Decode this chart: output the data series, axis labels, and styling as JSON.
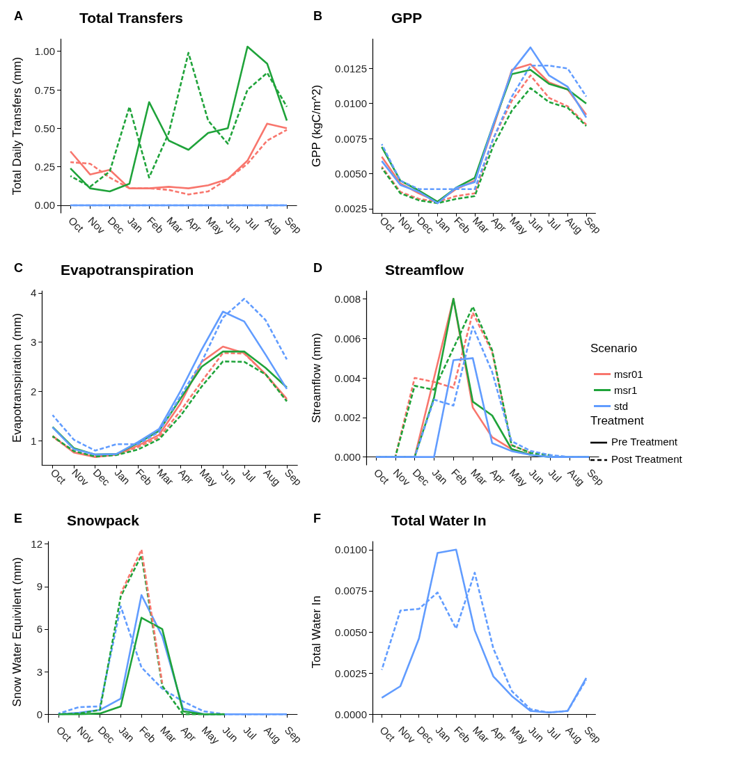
{
  "chart_data": [
    {
      "type": "line",
      "title": "Total Transfers",
      "annotations": [
        "A"
      ],
      "ylabel": "Total Daily Transfers (mm)",
      "categories": [
        "Oct",
        "Nov",
        "Dec",
        "Jan",
        "Feb",
        "Mar",
        "Apr",
        "May",
        "Jun",
        "Jul",
        "Aug",
        "Sep"
      ],
      "ylim": [
        -0.05,
        1.08
      ],
      "yticks": [
        {
          "value": 0,
          "label": "0.00"
        },
        {
          "value": 0.25,
          "label": "0.25"
        },
        {
          "value": 0.5,
          "label": "0.50"
        },
        {
          "value": 0.75,
          "label": "0.75"
        },
        {
          "value": 1,
          "label": "1.00"
        }
      ],
      "series": [
        {
          "color": "#f8766d",
          "line_style": "solid",
          "values": [
            0.35,
            0.2,
            0.23,
            0.11,
            0.11,
            0.12,
            0.11,
            0.13,
            0.17,
            0.29,
            0.53,
            0.5
          ]
        },
        {
          "color": "#f8766d",
          "line_style": "dashed",
          "values": [
            0.28,
            0.27,
            0.18,
            0.11,
            0.11,
            0.1,
            0.07,
            0.09,
            0.17,
            0.27,
            0.42,
            0.49
          ]
        },
        {
          "color": "#1fa33a",
          "line_style": "solid",
          "values": [
            0.24,
            0.11,
            0.09,
            0.14,
            0.67,
            0.42,
            0.36,
            0.47,
            0.5,
            1.03,
            0.92,
            0.55
          ]
        },
        {
          "color": "#1fa33a",
          "line_style": "dashed",
          "values": [
            0.19,
            0.12,
            0.22,
            0.64,
            0.18,
            0.47,
            0.99,
            0.55,
            0.4,
            0.75,
            0.86,
            0.64
          ]
        },
        {
          "color": "#619cff",
          "line_style": "dashed",
          "values": [
            0,
            0,
            0,
            0,
            0,
            0,
            0,
            0,
            0,
            0,
            0,
            0
          ]
        },
        {
          "color": "#619cff",
          "line_style": "solid",
          "values": [
            0,
            0,
            0,
            0,
            0,
            0,
            0,
            0,
            0,
            0,
            0,
            0
          ]
        }
      ]
    },
    {
      "type": "line",
      "title": "GPP",
      "annotations": [
        "B"
      ],
      "ylabel": "GPP (kgC/m^2)",
      "categories": [
        "Oct",
        "Nov",
        "Dec",
        "Jan",
        "Feb",
        "Mar",
        "Apr",
        "May",
        "Jun",
        "Jul",
        "Aug",
        "Sep"
      ],
      "ylim": [
        0.0022,
        0.0146
      ],
      "yticks": [
        {
          "value": 0.0025,
          "label": "0.0025"
        },
        {
          "value": 0.005,
          "label": "0.0050"
        },
        {
          "value": 0.0075,
          "label": "0.0075"
        },
        {
          "value": 0.01,
          "label": "0.0100"
        },
        {
          "value": 0.0125,
          "label": "0.0125"
        }
      ],
      "series": [
        {
          "color": "#f8766d",
          "line_style": "solid",
          "values": [
            0.0062,
            0.0043,
            0.0036,
            0.003,
            0.0039,
            0.0045,
            0.0083,
            0.0124,
            0.0128,
            0.0115,
            0.011,
            0.0092
          ]
        },
        {
          "color": "#f8766d",
          "line_style": "dashed",
          "values": [
            0.0055,
            0.0037,
            0.0032,
            0.003,
            0.0034,
            0.0036,
            0.0075,
            0.0102,
            0.012,
            0.0104,
            0.0098,
            0.0085
          ]
        },
        {
          "color": "#1fa33a",
          "line_style": "solid",
          "values": [
            0.0069,
            0.0045,
            0.0038,
            0.003,
            0.004,
            0.0047,
            0.0085,
            0.0121,
            0.0124,
            0.0114,
            0.011,
            0.01
          ]
        },
        {
          "color": "#1fa33a",
          "line_style": "dashed",
          "values": [
            0.0054,
            0.0036,
            0.0031,
            0.0029,
            0.0032,
            0.0034,
            0.007,
            0.0095,
            0.0111,
            0.0101,
            0.0097,
            0.0084
          ]
        },
        {
          "color": "#619cff",
          "line_style": "dashed",
          "values": [
            0.0071,
            0.0045,
            0.0039,
            0.0039,
            0.0039,
            0.0039,
            0.0075,
            0.0105,
            0.0127,
            0.0127,
            0.0125,
            0.0105
          ]
        },
        {
          "color": "#619cff",
          "line_style": "solid",
          "values": [
            0.0059,
            0.0042,
            0.0037,
            0.0029,
            0.004,
            0.0044,
            0.0085,
            0.0123,
            0.014,
            0.012,
            0.0112,
            0.009
          ]
        }
      ]
    },
    {
      "type": "line",
      "title": "Evapotranspiration",
      "annotations": [
        "C"
      ],
      "ylabel": "Evapotranspiration (mm)",
      "categories": [
        "Oct",
        "Nov",
        "Dec",
        "Jan",
        "Feb",
        "Mar",
        "Apr",
        "May",
        "Jun",
        "Jul",
        "Aug",
        "Sep"
      ],
      "ylim": [
        0.51,
        4.04
      ],
      "yticks": [
        1,
        2,
        3,
        4
      ],
      "series": [
        {
          "color": "#f8766d",
          "line_style": "solid",
          "values": [
            1.1,
            0.76,
            0.67,
            0.72,
            0.9,
            1.12,
            1.75,
            2.6,
            2.91,
            2.78,
            2.35,
            1.85
          ]
        },
        {
          "color": "#f8766d",
          "line_style": "dashed",
          "values": [
            1.08,
            0.77,
            0.68,
            0.72,
            0.87,
            1.07,
            1.6,
            2.2,
            2.78,
            2.77,
            2.35,
            1.82
          ]
        },
        {
          "color": "#1fa33a",
          "line_style": "solid",
          "values": [
            1.28,
            0.85,
            0.72,
            0.73,
            0.95,
            1.2,
            1.85,
            2.5,
            2.81,
            2.81,
            2.48,
            2.08
          ]
        },
        {
          "color": "#1fa33a",
          "line_style": "dashed",
          "values": [
            1.09,
            0.79,
            0.68,
            0.71,
            0.82,
            1.03,
            1.5,
            2.1,
            2.61,
            2.6,
            2.35,
            1.8
          ]
        },
        {
          "color": "#619cff",
          "line_style": "dashed",
          "values": [
            1.52,
            1.02,
            0.8,
            0.93,
            0.93,
            1.18,
            1.9,
            2.6,
            3.5,
            3.88,
            3.45,
            2.65
          ]
        },
        {
          "color": "#619cff",
          "line_style": "solid",
          "values": [
            1.27,
            0.83,
            0.72,
            0.73,
            0.97,
            1.24,
            2,
            2.85,
            3.62,
            3.42,
            2.75,
            2.05
          ]
        }
      ]
    },
    {
      "type": "line",
      "title": "Streamflow",
      "annotations": [
        "D",
        "Treatment",
        "Pre Treatment",
        "Post Treatment"
      ],
      "ylabel": "Streamflow (mm)",
      "legend": "right",
      "legend_title": "Scenario",
      "categories": [
        "Oct",
        "Nov",
        "Dec",
        "Jan",
        "Feb",
        "Mar",
        "Apr",
        "May",
        "Jun",
        "Jul",
        "Aug",
        "Sep"
      ],
      "ylim": [
        -0.0004,
        0.0084
      ],
      "yticks": [
        {
          "value": 0,
          "label": "0.000"
        },
        {
          "value": 0.002,
          "label": "0.002"
        },
        {
          "value": 0.004,
          "label": "0.004"
        },
        {
          "value": 0.006,
          "label": "0.006"
        },
        {
          "value": 0.008,
          "label": "0.008"
        }
      ],
      "series": [
        {
          "name": "msr01",
          "color": "#f8766d",
          "line_style": "solid",
          "values": [
            0,
            0,
            0,
            0.004,
            0.008,
            0.0025,
            0.001,
            0.0004,
            0.0001,
            null,
            null,
            null
          ]
        },
        {
          "color": "#f8766d",
          "line_style": "dashed",
          "values": [
            null,
            0,
            0.004,
            0.0038,
            0.0035,
            0.0073,
            0.0053,
            0.0006,
            0.0002,
            null,
            null,
            null
          ]
        },
        {
          "name": "msr1",
          "color": "#1fa33a",
          "line_style": "solid",
          "values": [
            0,
            0,
            0,
            0.003,
            0.008,
            0.0028,
            0.0021,
            0.0004,
            0.0001,
            0,
            0,
            0
          ]
        },
        {
          "color": "#1fa33a",
          "line_style": "dashed",
          "values": [
            null,
            0,
            0.0036,
            0.0034,
            0.0055,
            0.0076,
            0.0054,
            0.0006,
            0.0002,
            0.0001,
            null,
            null
          ]
        },
        {
          "color": "#619cff",
          "line_style": "dashed",
          "values": [
            0,
            0,
            0,
            0.0029,
            0.0026,
            0.0066,
            0.0043,
            0.0008,
            0.0003,
            0.0001,
            0,
            0
          ]
        },
        {
          "name": "std",
          "color": "#619cff",
          "line_style": "solid",
          "values": [
            0,
            0,
            0,
            0,
            0.0049,
            0.005,
            0.0007,
            0.0003,
            0.0001,
            0,
            0,
            0
          ]
        }
      ]
    },
    {
      "type": "line",
      "title": "Snowpack",
      "annotations": [
        "E"
      ],
      "ylabel": "Snow Water Equivilent (mm)",
      "categories": [
        "Oct",
        "Nov",
        "Dec",
        "Jan",
        "Feb",
        "Mar",
        "Apr",
        "May",
        "Jun",
        "Jul",
        "Aug",
        "Sep"
      ],
      "ylim": [
        -0.58,
        12.18
      ],
      "yticks": [
        0,
        3,
        6,
        9,
        12
      ],
      "series": [
        {
          "color": "#619cff",
          "line_style": "dashed",
          "values": [
            0.05,
            0.5,
            0.55,
            7.6,
            3.3,
            1.8,
            0.9,
            0.2,
            0,
            0,
            0,
            0
          ]
        },
        {
          "color": "#619cff",
          "line_style": "solid",
          "values": [
            0,
            0.1,
            0.3,
            1.1,
            8.4,
            5.5,
            0.4,
            0,
            0,
            0,
            0,
            0
          ]
        },
        {
          "color": "#1fa33a",
          "line_style": "solid",
          "values": [
            0,
            0,
            0.05,
            0.55,
            6.8,
            6,
            0.2,
            0,
            0,
            null,
            null,
            null
          ]
        },
        {
          "color": "#1fa33a",
          "line_style": "dashed",
          "values": [
            0,
            0.05,
            0.3,
            8.3,
            11.2,
            2,
            0,
            0,
            0,
            null,
            null,
            null
          ]
        },
        {
          "color": "#f8766d",
          "line_style": "dashed",
          "values": [
            null,
            null,
            null,
            8.5,
            11.6,
            2.2,
            null,
            null,
            null,
            null,
            null,
            null
          ]
        }
      ]
    },
    {
      "type": "line",
      "title": "Total Water In",
      "annotations": [
        "F"
      ],
      "ylabel": "Total Water In",
      "categories": [
        "Oct",
        "Nov",
        "Dec",
        "Jan",
        "Feb",
        "Mar",
        "Apr",
        "May",
        "Jun",
        "Jul",
        "Aug",
        "Sep"
      ],
      "ylim": [
        -0.0005,
        0.0105
      ],
      "yticks": [
        {
          "value": 0,
          "label": "0.0000"
        },
        {
          "value": 0.0025,
          "label": "0.0025"
        },
        {
          "value": 0.005,
          "label": "0.0050"
        },
        {
          "value": 0.0075,
          "label": "0.0075"
        },
        {
          "value": 0.01,
          "label": "0.0100"
        }
      ],
      "series": [
        {
          "color": "#619cff",
          "line_style": "dashed",
          "values": [
            0.0027,
            0.0063,
            0.0064,
            0.0074,
            0.0052,
            0.0086,
            0.004,
            0.0014,
            0.0003,
            0.0001,
            0.0002,
            0.0021
          ]
        },
        {
          "color": "#619cff",
          "line_style": "solid",
          "values": [
            0.001,
            0.0017,
            0.0046,
            0.0098,
            0.01,
            0.0051,
            0.0023,
            0.0011,
            0.0002,
            0.0001,
            0.0002,
            0.0022
          ]
        }
      ]
    }
  ]
}
